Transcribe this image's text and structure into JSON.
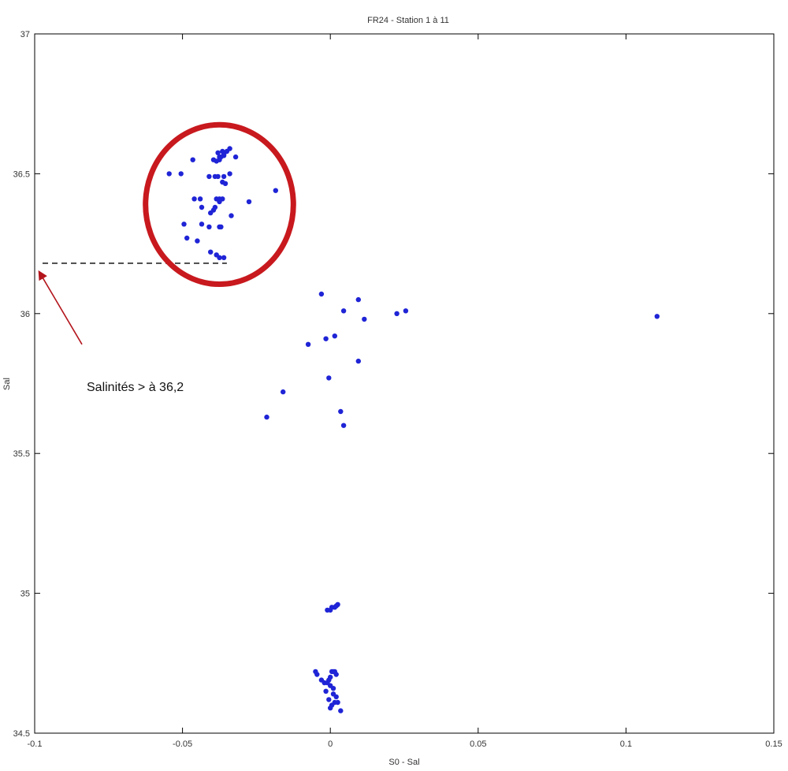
{
  "chart_data": {
    "type": "scatter",
    "title": "FR24 - Station 1 à 11",
    "xlabel": "S0 - Sal",
    "ylabel": "Sal",
    "xlim": [
      -0.1,
      0.15
    ],
    "ylim": [
      34.5,
      37
    ],
    "xticks": [
      -0.1,
      -0.05,
      0,
      0.05,
      0.1,
      0.15
    ],
    "xtick_labels": [
      "-0.1",
      "-0.05",
      "0",
      "0.05",
      "0.1",
      "0.15"
    ],
    "yticks": [
      34.5,
      35,
      35.5,
      36,
      36.5,
      37
    ],
    "ytick_labels": [
      "34.5",
      "35",
      "35.5",
      "36",
      "36.5",
      "37"
    ],
    "grid": false,
    "marker_color": "#1f24d6",
    "series": [
      {
        "x": [
          -0.0375,
          -0.038,
          -0.0385,
          -0.036,
          -0.035,
          -0.034,
          -0.0375,
          -0.036,
          -0.0365,
          -0.037,
          -0.0395,
          -0.038,
          -0.036,
          -0.041,
          -0.039,
          -0.034,
          -0.032,
          -0.0365,
          -0.0355,
          -0.0365,
          -0.0385,
          -0.0375,
          -0.039,
          -0.037,
          -0.0375,
          -0.041,
          -0.0465,
          -0.0505,
          -0.0545,
          -0.046,
          -0.044,
          -0.0375,
          -0.0435,
          -0.0405,
          -0.0495,
          -0.0335,
          -0.0395,
          -0.0275,
          -0.0185,
          -0.045,
          -0.0375,
          -0.0385,
          -0.0485,
          -0.0405,
          -0.0435,
          -0.036,
          -0.003,
          0.0095,
          0.0045,
          0.0255,
          0.0115,
          0.0225,
          0.0015,
          -0.0015,
          -0.0075,
          0.0095,
          -0.0005,
          -0.016,
          0.0035,
          -0.0215,
          0.0045,
          0.1105,
          -0.001,
          0.0,
          0.0005,
          0.0015,
          0.0025,
          0.002,
          0.0005,
          0.001,
          0.0015,
          0.002,
          0.0,
          -0.0005,
          -0.001,
          -0.002,
          -0.003,
          -0.0045,
          -0.005,
          0.0,
          0.001,
          -0.0015,
          0.001,
          0.002,
          0.0015,
          0.0005,
          0.0,
          0.0025,
          -0.0005,
          0.0035
        ],
        "y": [
          36.56,
          36.575,
          36.545,
          36.565,
          36.58,
          36.59,
          36.55,
          36.57,
          36.58,
          36.56,
          36.55,
          36.49,
          36.49,
          36.49,
          36.49,
          36.5,
          36.56,
          36.47,
          36.465,
          36.41,
          36.41,
          36.4,
          36.38,
          36.31,
          36.31,
          36.31,
          36.55,
          36.5,
          36.5,
          36.41,
          36.41,
          36.41,
          36.38,
          36.36,
          36.32,
          36.35,
          36.37,
          36.4,
          36.44,
          36.26,
          36.2,
          36.21,
          36.27,
          36.22,
          36.32,
          36.2,
          36.07,
          36.05,
          36.01,
          36.01,
          35.98,
          36.0,
          35.92,
          35.91,
          35.89,
          35.83,
          35.77,
          35.72,
          35.65,
          35.63,
          35.6,
          35.99,
          34.94,
          34.94,
          34.95,
          34.95,
          34.96,
          34.955,
          34.72,
          34.72,
          34.72,
          34.71,
          34.7,
          34.69,
          34.68,
          34.68,
          34.69,
          34.71,
          34.72,
          34.67,
          34.66,
          34.65,
          34.64,
          34.63,
          34.61,
          34.6,
          34.59,
          34.61,
          34.62,
          34.58
        ]
      }
    ],
    "annotations": [
      {
        "type": "text",
        "text": "Salinités > à 36,2"
      }
    ],
    "reference_line": {
      "y": 36.18,
      "x_start": -0.1,
      "x_end": -0.035,
      "style": "dashed",
      "color": "#000000"
    },
    "highlight_ellipse": {
      "cx": -0.0375,
      "cy": 36.39,
      "rx": 0.025,
      "ry": 0.285,
      "color": "#c8191e"
    },
    "arrow": {
      "from": [
        -0.084,
        35.89
      ],
      "to": [
        -0.0985,
        36.15
      ],
      "color": "#b3151c"
    }
  }
}
